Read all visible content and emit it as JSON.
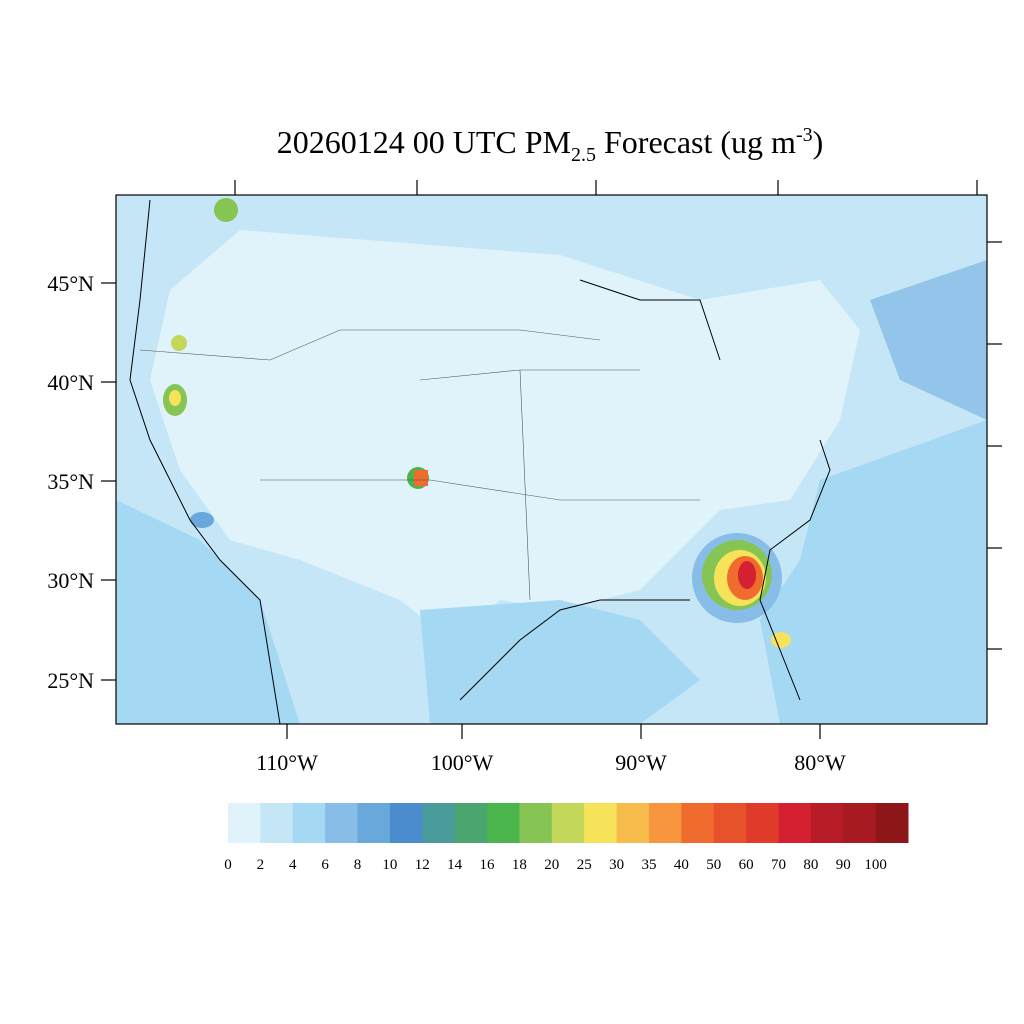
{
  "header": {
    "title_main": "20260124 00 UTC PM",
    "title_sub": "2.5",
    "title_mid": " Forecast (ug m",
    "title_sup": "-3",
    "title_end": ")"
  },
  "map": {
    "lat_labels": [
      "45°N",
      "40°N",
      "35°N",
      "30°N",
      "25°N"
    ],
    "lon_labels": [
      "110°W",
      "100°W",
      "90°W",
      "80°W"
    ]
  },
  "colorbar": {
    "levels": [
      0,
      2,
      4,
      6,
      8,
      10,
      12,
      14,
      16,
      18,
      20,
      25,
      30,
      35,
      40,
      50,
      60,
      70,
      80,
      90,
      100
    ],
    "colors": [
      "#e0f3fb",
      "#c4e6f7",
      "#a5d8f3",
      "#87bde6",
      "#68a8da",
      "#4a8cce",
      "#4a9c9c",
      "#4aa56e",
      "#4ab54a",
      "#86c553",
      "#c3d85a",
      "#f7e35a",
      "#f7bb4c",
      "#f7963e",
      "#ef6b2e",
      "#e8522a",
      "#e03a2a",
      "#d42030",
      "#b81c28",
      "#a81a22",
      "#8c1618"
    ]
  }
}
